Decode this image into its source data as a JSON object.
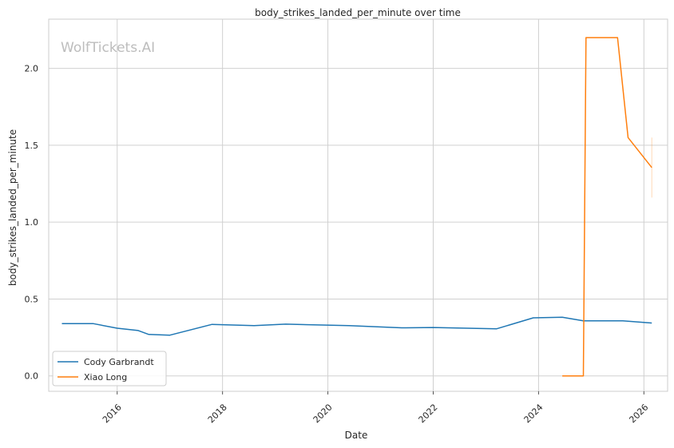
{
  "chart_data": {
    "type": "line",
    "title": "body_strikes_landed_per_minute over time",
    "xlabel": "Date",
    "ylabel": "body_strikes_landed_per_minute",
    "watermark": "WolfTickets.AI",
    "xlim": [
      2014.7,
      2026.45
    ],
    "ylim": [
      -0.1,
      2.32
    ],
    "x_ticks": [
      2016,
      2018,
      2020,
      2022,
      2024,
      2026
    ],
    "x_tick_labels": [
      "2016",
      "2018",
      "2020",
      "2022",
      "2024",
      "2026"
    ],
    "y_ticks": [
      0.0,
      0.5,
      1.0,
      1.5,
      2.0
    ],
    "y_tick_labels": [
      "0.0",
      "0.5",
      "1.0",
      "1.5",
      "2.0"
    ],
    "grid": true,
    "legend_position": "lower-left",
    "series": [
      {
        "name": "Cody Garbrandt",
        "color": "#1f77b4",
        "x": [
          2014.95,
          2015.55,
          2016.0,
          2016.4,
          2016.6,
          2017.0,
          2017.8,
          2018.6,
          2019.2,
          2020.4,
          2021.4,
          2022.0,
          2023.2,
          2023.9,
          2024.45,
          2024.85,
          2025.6,
          2026.15
        ],
        "y": [
          0.34,
          0.34,
          0.31,
          0.295,
          0.27,
          0.265,
          0.335,
          0.327,
          0.337,
          0.327,
          0.313,
          0.315,
          0.306,
          0.378,
          0.382,
          0.358,
          0.358,
          0.344
        ]
      },
      {
        "name": "Xiao Long",
        "color": "#ff7f0e",
        "x": [
          2024.45,
          2024.85,
          2024.9,
          2025.5,
          2025.7,
          2026.15
        ],
        "y": [
          0.0,
          0.0,
          2.2,
          2.2,
          1.55,
          1.355
        ]
      }
    ],
    "error_bar": {
      "series": "Xiao Long",
      "x": 2026.15,
      "low": 1.16,
      "high": 1.55
    }
  }
}
